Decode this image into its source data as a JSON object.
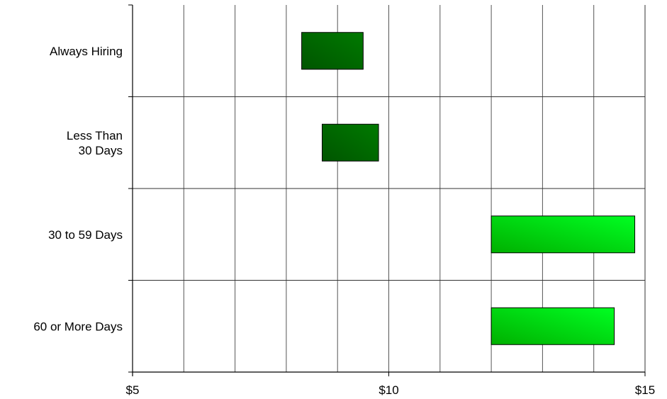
{
  "chart_data": {
    "type": "bar",
    "orientation": "horizontal",
    "style": "floating-range",
    "title": "",
    "xlabel": "",
    "ylabel": "",
    "xlim": [
      5,
      15
    ],
    "x_ticks": [
      5,
      10,
      15
    ],
    "x_tick_labels": [
      "$5",
      "$10",
      "$15"
    ],
    "grid": true,
    "categories": [
      [
        "Always Hiring"
      ],
      [
        "Less Than",
        "30 Days"
      ],
      [
        "30 to 59 Days"
      ],
      [
        "60 or More Days"
      ]
    ],
    "ranges": [
      [
        8.3,
        9.5
      ],
      [
        8.7,
        9.8
      ],
      [
        12.0,
        14.8
      ],
      [
        12.0,
        14.4
      ]
    ],
    "bar_colors": [
      "#006600",
      "#006600",
      "#00e600",
      "#00e600"
    ]
  }
}
